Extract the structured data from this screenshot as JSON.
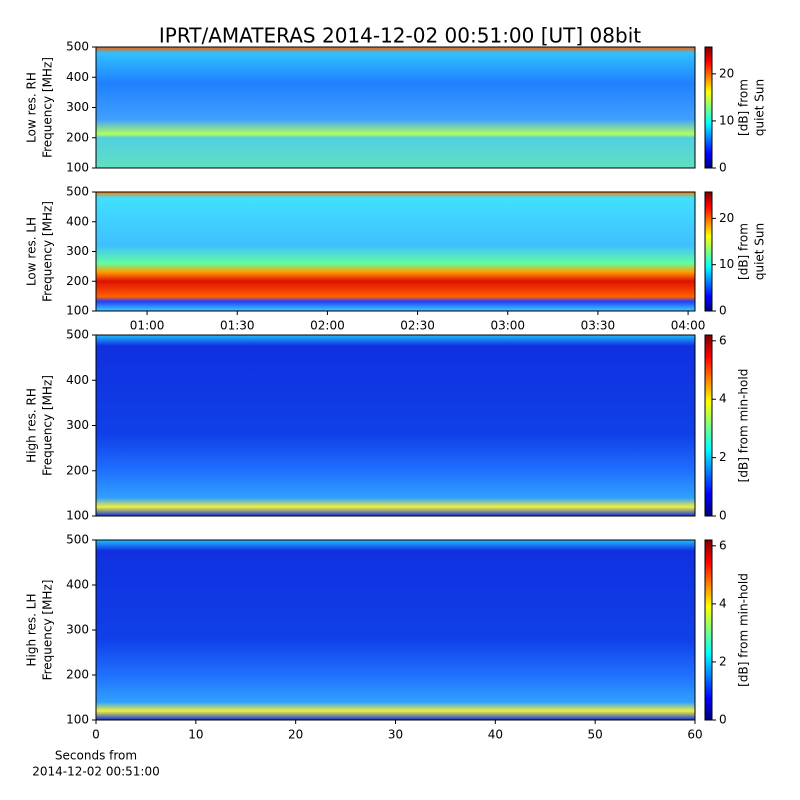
{
  "title": "IPRT/AMATERAS 2014-12-02 00:51:00 [UT]   08bit",
  "xlabel": [
    "Seconds from",
    "2014-12-02 00:51:00"
  ],
  "chart_data": [
    {
      "type": "heatmap",
      "ylabel": [
        "Low res. RH",
        "Frequency [MHz]"
      ],
      "ylim": [
        100,
        500
      ],
      "yticks": [
        100,
        200,
        300,
        400,
        500
      ],
      "colorbar": {
        "label": [
          "[dB] from",
          "quiet Sun"
        ],
        "lim": [
          0,
          25.7
        ],
        "ticks": [
          0,
          10,
          20
        ]
      }
    },
    {
      "type": "heatmap",
      "ylabel": [
        "Low res. LH",
        "Frequency [MHz]"
      ],
      "ylim": [
        100,
        500
      ],
      "yticks": [
        100,
        200,
        300,
        400,
        500
      ],
      "xlim": [
        43,
        242.3
      ],
      "xticks": [
        {
          "value": 60,
          "label": "01:00"
        },
        {
          "value": 90,
          "label": "01:30"
        },
        {
          "value": 120,
          "label": "02:00"
        },
        {
          "value": 150,
          "label": "02:30"
        },
        {
          "value": 180,
          "label": "03:00"
        },
        {
          "value": 210,
          "label": "03:30"
        },
        {
          "value": 240,
          "label": "04:00"
        }
      ],
      "colorbar": {
        "label": [
          "[dB] from",
          "quiet Sun"
        ],
        "lim": [
          0,
          25.7
        ],
        "ticks": [
          0,
          10,
          20
        ]
      }
    },
    {
      "type": "heatmap",
      "ylabel": [
        "High res. RH",
        "Frequency [MHz]"
      ],
      "ylim": [
        100,
        500
      ],
      "yticks": [
        100,
        200,
        300,
        400,
        500
      ],
      "colorbar": {
        "label": [
          "[dB] from min-hold"
        ],
        "lim": [
          0,
          6.2
        ],
        "ticks": [
          0,
          2,
          4,
          6
        ]
      }
    },
    {
      "type": "heatmap",
      "ylabel": [
        "High res. LH",
        "Frequency [MHz]"
      ],
      "ylim": [
        100,
        500
      ],
      "yticks": [
        100,
        200,
        300,
        400,
        500
      ],
      "xlim": [
        0,
        60
      ],
      "xticks": [
        0,
        10,
        20,
        30,
        40,
        50,
        60
      ],
      "colorbar": {
        "label": [
          "[dB] from min-hold"
        ],
        "lim": [
          0,
          6.2
        ],
        "ticks": [
          0,
          2,
          4,
          6
        ]
      }
    }
  ]
}
